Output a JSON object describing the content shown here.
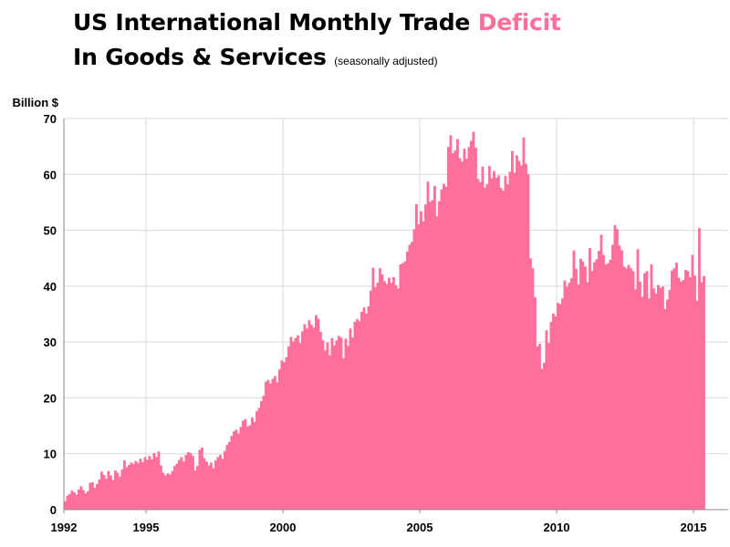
{
  "title": {
    "line1_prefix": "US International Monthly Trade ",
    "line1_accent": "Deficit",
    "line2": "In Goods & Services",
    "subtitle": "(seasonally adjusted)"
  },
  "colors": {
    "bar": "#ff6f9c",
    "accent": "#ff6f9c",
    "grid": "#d9d9d9",
    "axis": "#888888"
  },
  "chart_data": {
    "type": "bar",
    "title": "US International Monthly Trade Deficit In Goods & Services",
    "subtitle": "(seasonally adjusted)",
    "ylabel": "Billion $",
    "xlabel": "",
    "ylim": [
      0,
      70
    ],
    "yticks": [
      0,
      10,
      20,
      30,
      40,
      50,
      60,
      70
    ],
    "xticks": [
      {
        "label": "1992",
        "year": 1992
      },
      {
        "label": "1995",
        "year": 1995
      },
      {
        "label": "2000",
        "year": 2000
      },
      {
        "label": "2005",
        "year": 2005
      },
      {
        "label": "2010",
        "year": 2010
      },
      {
        "label": "2015",
        "year": 2015
      }
    ],
    "x_start": "1992-01",
    "x_end": "2015-06",
    "grid": true,
    "series": [
      {
        "name": "Trade Deficit",
        "values_start": "1992-01",
        "frequency": "monthly",
        "values": [
          1.5,
          2.5,
          2.8,
          3.4,
          3.1,
          2.7,
          3.6,
          4.2,
          3.5,
          2.9,
          3.3,
          4.8,
          4.9,
          3.9,
          4.6,
          5.4,
          6.8,
          6.2,
          5.5,
          6.9,
          6.1,
          5.3,
          7.0,
          6.6,
          5.9,
          7.2,
          8.8,
          7.6,
          8.0,
          8.4,
          8.2,
          8.7,
          8.3,
          9.1,
          8.5,
          9.4,
          8.9,
          9.6,
          9.0,
          10.1,
          9.4,
          10.4,
          7.9,
          6.6,
          6.1,
          6.5,
          6.3,
          6.9,
          7.8,
          8.2,
          8.9,
          9.4,
          8.6,
          9.8,
          10.3,
          10.1,
          9.6,
          7.0,
          7.8,
          10.7,
          11.1,
          9.2,
          8.6,
          7.9,
          8.4,
          7.4,
          8.8,
          9.4,
          9.8,
          9.1,
          10.5,
          11.6,
          12.1,
          13.2,
          14.0,
          14.3,
          13.6,
          14.8,
          15.9,
          16.2,
          14.9,
          15.1,
          16.5,
          15.7,
          17.6,
          18.2,
          19.4,
          20.4,
          22.9,
          23.2,
          22.6,
          23.4,
          23.9,
          22.8,
          25.1,
          26.7,
          26.4,
          27.3,
          29.2,
          30.9,
          30.1,
          30.7,
          31.2,
          29.8,
          31.9,
          33.2,
          32.4,
          33.9,
          33.1,
          32.6,
          34.8,
          34.2,
          31.8,
          30.3,
          28.5,
          29.9,
          27.6,
          30.7,
          29.4,
          30.3,
          31.1,
          30.8,
          27.1,
          30.6,
          29.3,
          32.4,
          30.8,
          33.6,
          34.1,
          33.7,
          35.4,
          36.2,
          35.1,
          36.4,
          39.2,
          43.3,
          39.8,
          40.6,
          43.2,
          42.1,
          40.9,
          40.4,
          41.5,
          40.6,
          41.6,
          40.2,
          39.6,
          43.9,
          44.1,
          44.4,
          46.2,
          47.4,
          47.9,
          50.2,
          54.7,
          51.1,
          53.4,
          51.6,
          54.6,
          58.7,
          55.1,
          55.4,
          57.9,
          52.5,
          55.2,
          57.3,
          58.3,
          57.8,
          64.9,
          67.0,
          63.8,
          64.3,
          66.3,
          62.9,
          62.3,
          64.6,
          62.8,
          64.9,
          66.0,
          67.6,
          64.8,
          59.2,
          58.6,
          61.4,
          57.6,
          58.3,
          61.5,
          59.3,
          60.6,
          59.4,
          59.8,
          57.6,
          57.1,
          59.7,
          58.2,
          60.5,
          64.2,
          60.3,
          63.4,
          62.4,
          61.6,
          66.6,
          61.9,
          60.0,
          45.0,
          43.2,
          38.0,
          29.2,
          29.7,
          25.2,
          26.3,
          32.1,
          29.8,
          33.6,
          35.1,
          34.6,
          37.0,
          36.8,
          37.8,
          41.0,
          39.9,
          40.6,
          41.4,
          46.4,
          43.1,
          40.3,
          44.9,
          44.4,
          43.5,
          40.7,
          46.8,
          42.7,
          44.3,
          44.8,
          46.3,
          49.2,
          45.6,
          43.9,
          44.1,
          44.7,
          47.4,
          50.9,
          50.2,
          47.3,
          46.4,
          43.5,
          43.2,
          43.8,
          43.2,
          42.7,
          39.4,
          46.6,
          40.8,
          38.1,
          42.3,
          42.7,
          37.8,
          43.9,
          39.6,
          38.7,
          40.2,
          39.7,
          39.9,
          35.9,
          37.6,
          39.3,
          42.8,
          43.2,
          44.2,
          41.5,
          40.8,
          41.1,
          42.9,
          42.7,
          41.6,
          45.6,
          41.9,
          37.4,
          50.4,
          40.7,
          41.8
        ]
      }
    ]
  }
}
